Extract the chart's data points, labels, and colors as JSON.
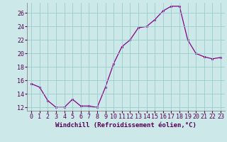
{
  "x": [
    0,
    1,
    2,
    3,
    4,
    5,
    6,
    7,
    8,
    9,
    10,
    11,
    12,
    13,
    14,
    15,
    16,
    17,
    18,
    19,
    20,
    21,
    22,
    23
  ],
  "y": [
    15.5,
    15.0,
    13.0,
    12.0,
    12.0,
    13.2,
    12.2,
    12.2,
    12.0,
    15.0,
    18.5,
    21.0,
    22.0,
    23.8,
    24.0,
    25.0,
    26.3,
    27.0,
    27.0,
    22.0,
    20.0,
    19.5,
    19.2,
    19.4
  ],
  "line_color": "#880088",
  "marker": "s",
  "marker_size": 2,
  "bg_color": "#cce8e8",
  "grid_color": "#99cccc",
  "xlabel": "Windchill (Refroidissement éolien,°C)",
  "xlabel_fontsize": 6.5,
  "tick_fontsize": 6.0,
  "ylim": [
    11.5,
    27.5
  ],
  "xlim": [
    -0.5,
    23.5
  ],
  "yticks": [
    12,
    14,
    16,
    18,
    20,
    22,
    24,
    26
  ],
  "xticks": [
    0,
    1,
    2,
    3,
    4,
    5,
    6,
    7,
    8,
    9,
    10,
    11,
    12,
    13,
    14,
    15,
    16,
    17,
    18,
    19,
    20,
    21,
    22,
    23
  ]
}
